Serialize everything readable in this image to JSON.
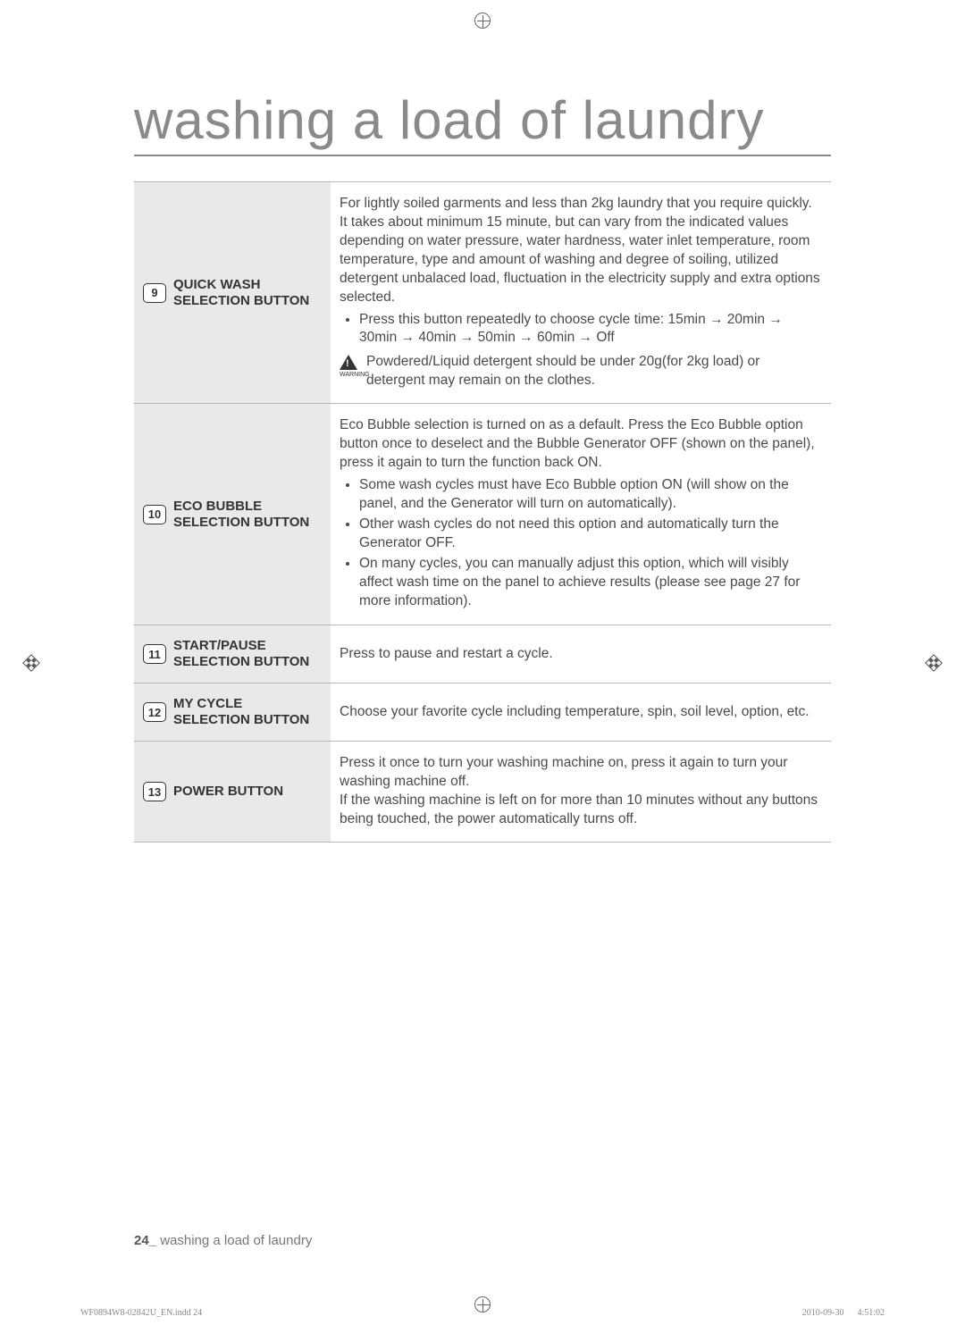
{
  "title": "washing a load of laundry",
  "rows": [
    {
      "num": "9",
      "name_line1": "QUICK WASH",
      "name_line2": "SELECTION BUTTON",
      "intro": "For lightly soiled garments and less than 2kg laundry that you require quickly. It takes about minimum 15 minute, but can vary from the indicated values depending on water pressure, water hardness, water inlet temperature, room temperature, type and amount of washing and degree of soiling, utilized detergent unbalaced load, fluctuation in the electricity supply and extra options selected.",
      "bullets": [
        "Press this button repeatedly to choose cycle time: 15min → 20min → 30min → 40min → 50min → 60min → Off"
      ],
      "warning_label": "WARNING",
      "warning_text": "Powdered/Liquid detergent should be under 20g(for 2kg load) or detergent may remain on the clothes."
    },
    {
      "num": "10",
      "name_line1": "ECO BUBBLE",
      "name_line2": "SELECTION BUTTON",
      "intro": "Eco Bubble selection is turned on as a default. Press the Eco Bubble option button once to deselect and the Bubble Generator OFF (shown on the panel), press it again to turn the function back ON.",
      "bullets": [
        "Some wash cycles must have Eco Bubble option ON (will show on the panel, and the Generator will turn on automatically).",
        "Other wash cycles do not need this option and automatically turn the Generator OFF.",
        "On many cycles, you can manually adjust this option, which will visibly affect wash time on the panel to achieve results (please see page 27 for more information)."
      ]
    },
    {
      "num": "11",
      "name_line1": "START/PAUSE",
      "name_line2": "SELECTION BUTTON",
      "intro": "Press to pause and restart a cycle."
    },
    {
      "num": "12",
      "name_line1": "MY CYCLE",
      "name_line2": "SELECTION BUTTON",
      "intro": "Choose your favorite cycle including temperature, spin, soil level, option, etc."
    },
    {
      "num": "13",
      "name_line1": "POWER BUTTON",
      "name_line2": "",
      "intro": "Press it once to turn your washing machine on, press it again to turn your washing machine off.\nIf the washing machine is left on for more than 10 minutes without any buttons being touched, the power automatically turns off."
    }
  ],
  "footer_page": "24_",
  "footer_text": "washing a load of laundry",
  "print_left": "WF0894W8-02842U_EN.indd   24",
  "print_right": "2010-09-30      4:51:02"
}
